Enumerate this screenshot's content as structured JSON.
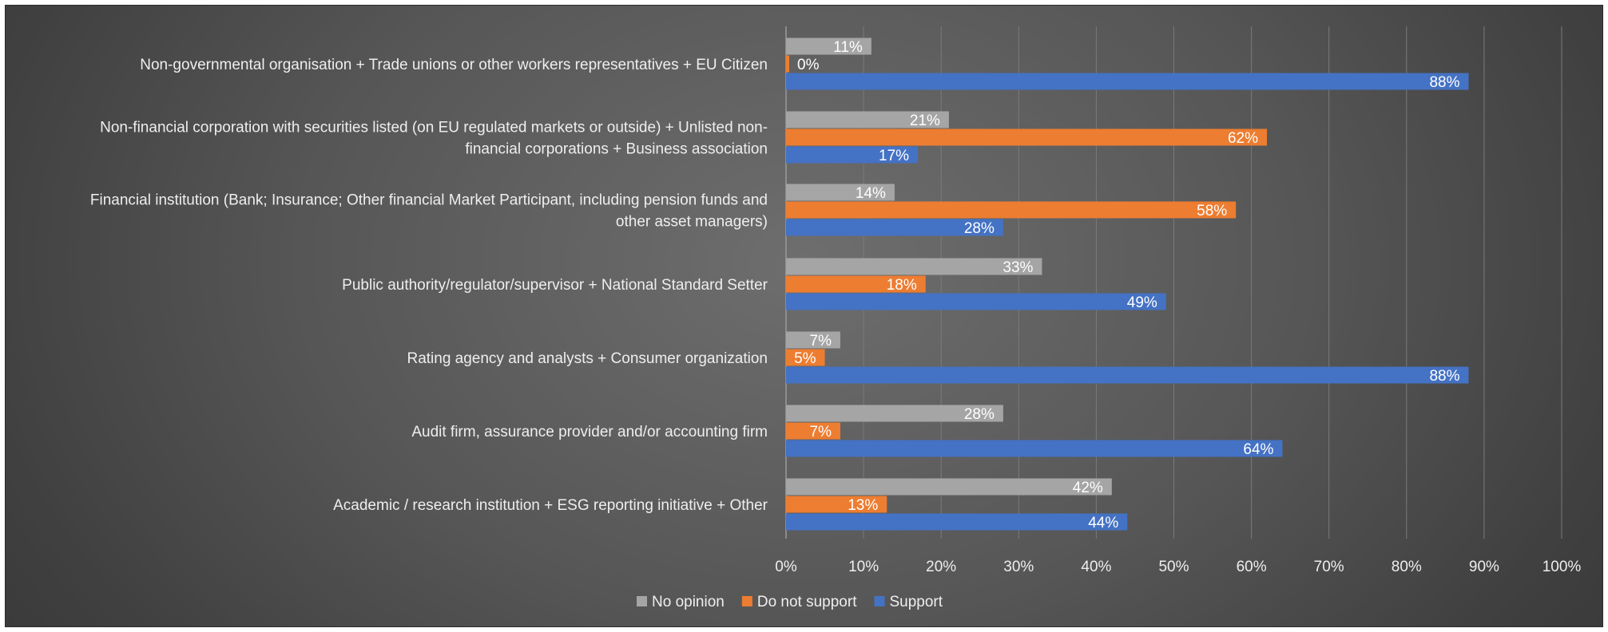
{
  "chart_data": {
    "type": "bar",
    "orientation": "horizontal",
    "title": "",
    "xlabel": "",
    "ylabel": "",
    "xlim": [
      0,
      100
    ],
    "x_ticks": [
      "0%",
      "10%",
      "20%",
      "30%",
      "40%",
      "50%",
      "60%",
      "70%",
      "80%",
      "90%",
      "100%"
    ],
    "grid": true,
    "legend_position": "bottom",
    "categories": [
      [
        "Non-governmental organisation + Trade unions or other workers representatives + EU Citizen"
      ],
      [
        "Non-financial corporation with securities listed (on EU regulated markets or outside) + Unlisted non-",
        "financial corporations + Business association"
      ],
      [
        "Financial institution (Bank; Insurance; Other financial Market Participant, including pension funds and",
        "other asset managers)"
      ],
      [
        "Public authority/regulator/supervisor + National Standard Setter"
      ],
      [
        "Rating agency and analysts + Consumer organization"
      ],
      [
        "Audit firm, assurance provider and/or accounting firm"
      ],
      [
        "Academic / research institution + ESG reporting initiative + Other"
      ]
    ],
    "series": [
      {
        "name": "No opinion",
        "color": "#a5a5a5",
        "values": [
          11,
          21,
          14,
          33,
          7,
          28,
          42
        ],
        "labels": [
          "11%",
          "21%",
          "14%",
          "33%",
          "7%",
          "28%",
          "42%"
        ]
      },
      {
        "name": "Do not support",
        "color": "#ed7d31",
        "values": [
          0,
          62,
          58,
          18,
          5,
          7,
          13
        ],
        "labels": [
          "0%",
          "62%",
          "58%",
          "18%",
          "5%",
          "7%",
          "13%"
        ]
      },
      {
        "name": "Support",
        "color": "#4472c4",
        "values": [
          88,
          17,
          28,
          49,
          88,
          64,
          44
        ],
        "labels": [
          "88%",
          "17%",
          "28%",
          "49%",
          "88%",
          "64%",
          "44%"
        ]
      }
    ]
  }
}
